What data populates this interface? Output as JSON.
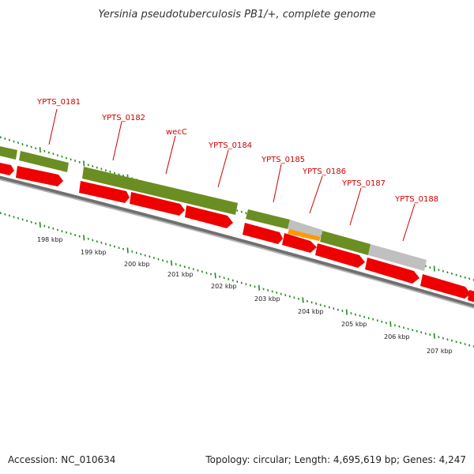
{
  "title": "Yersinia pseudotuberculosis PB1/+, complete genome",
  "footer": {
    "accession": "Accession: NC_010634",
    "summary": "Topology: circular; Length: 4,695,619 bp; Genes: 4,247"
  },
  "colors": {
    "cds_forward": "#6b8e23",
    "cds_reverse": "#ee0000",
    "rna": "#ff9900",
    "other": "#c0c0c0",
    "backbone": "#707070",
    "ticks": "#228b22",
    "label": "#cc0000"
  },
  "gene_labels": [
    {
      "name": "YPTS_0181"
    },
    {
      "name": "YPTS_0182"
    },
    {
      "name": "wecC"
    },
    {
      "name": "YPTS_0184"
    },
    {
      "name": "YPTS_0185"
    },
    {
      "name": "YPTS_0186"
    },
    {
      "name": "YPTS_0187"
    },
    {
      "name": "YPTS_0188"
    }
  ],
  "kbp_labels": [
    "198 kbp",
    "199 kbp",
    "200 kbp",
    "201 kbp",
    "202 kbp",
    "203 kbp",
    "204 kbp",
    "205 kbp",
    "206 kbp",
    "207 kbp"
  ]
}
